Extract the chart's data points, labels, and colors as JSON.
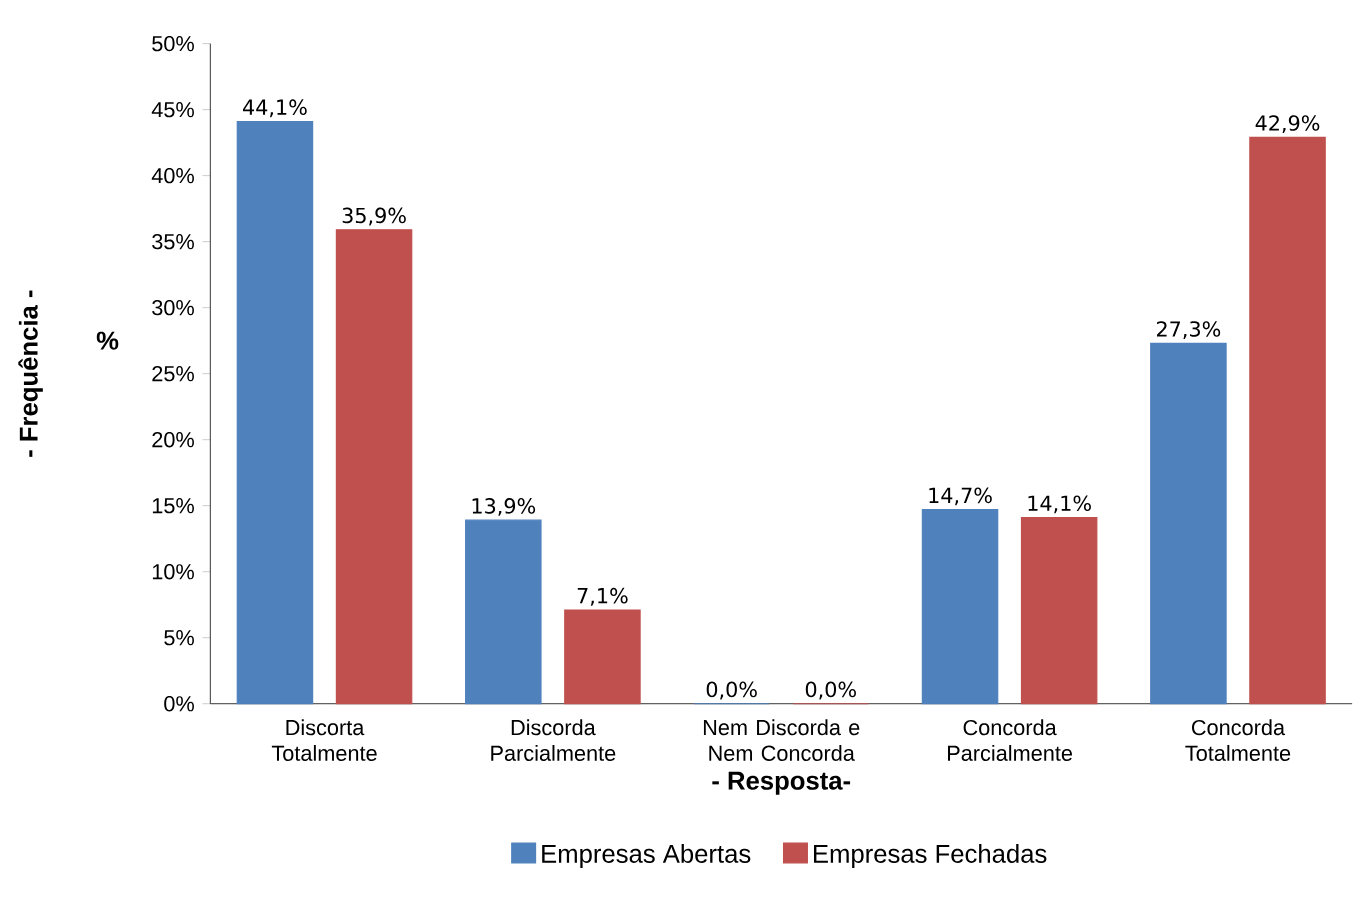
{
  "chart_data": {
    "type": "bar",
    "xlabel": "- Resposta-",
    "ylabel": "- Frequência -",
    "annotations": [
      "%"
    ],
    "categories": [
      "Discorta Totalmente",
      "Discorda Parcialmente",
      "Nem Discorda e Nem Concorda",
      "Concorda Parcialmente",
      "Concorda Totalmente"
    ],
    "series": [
      {
        "name": "Empresas Abertas",
        "color": "#4f81bd",
        "values": [
          44.1,
          13.9,
          0.0,
          14.7,
          27.3
        ],
        "value_labels": [
          "44,1%",
          "13,9%",
          "0,0%",
          "14,7%",
          "27,3%"
        ]
      },
      {
        "name": "Empresas Fechadas",
        "color": "#c0504d",
        "values": [
          35.9,
          7.1,
          0.0,
          14.1,
          42.9
        ],
        "value_labels": [
          "35,9%",
          "7,1%",
          "0,0%",
          "14,1%",
          "42,9%"
        ]
      }
    ],
    "ylim": [
      0,
      50
    ],
    "yticks": [
      {
        "value": 0,
        "label": "0%"
      },
      {
        "value": 5,
        "label": "5%"
      },
      {
        "value": 10,
        "label": "10%"
      },
      {
        "value": 15,
        "label": "15%"
      },
      {
        "value": 20,
        "label": "20%"
      },
      {
        "value": 25,
        "label": "25%"
      },
      {
        "value": 30,
        "label": "30%"
      },
      {
        "value": 35,
        "label": "35%"
      },
      {
        "value": 40,
        "label": "40%"
      },
      {
        "value": 45,
        "label": "45%"
      },
      {
        "value": 50,
        "label": "50%"
      }
    ],
    "grid": false,
    "legend": "bottom"
  }
}
